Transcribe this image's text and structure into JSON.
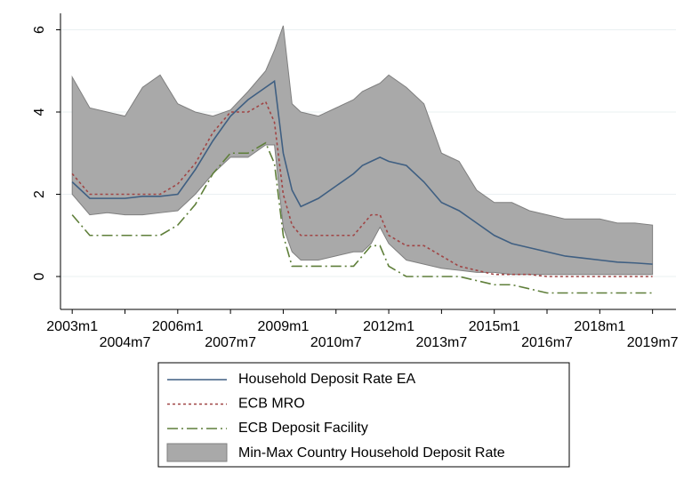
{
  "chart_data": {
    "type": "line",
    "x": [
      "2003m1",
      "2003m7",
      "2004m1",
      "2004m7",
      "2005m1",
      "2005m7",
      "2006m1",
      "2006m7",
      "2007m1",
      "2007m7",
      "2008m1",
      "2008m7",
      "2008m10",
      "2009m1",
      "2009m4",
      "2009m7",
      "2010m1",
      "2010m7",
      "2011m1",
      "2011m4",
      "2011m7",
      "2011m10",
      "2012m1",
      "2012m7",
      "2013m1",
      "2013m7",
      "2014m1",
      "2014m7",
      "2015m1",
      "2015m7",
      "2016m1",
      "2016m7",
      "2017m1",
      "2017m7",
      "2018m1",
      "2018m7",
      "2019m1",
      "2019m7"
    ],
    "band": {
      "name": "Min-Max Country Household Deposit Rate",
      "color": "#a9a9a9",
      "low": [
        2.0,
        1.5,
        1.55,
        1.5,
        1.5,
        1.55,
        1.6,
        2.0,
        2.5,
        2.9,
        2.9,
        3.2,
        3.2,
        1.2,
        0.6,
        0.4,
        0.4,
        0.5,
        0.6,
        0.6,
        0.8,
        1.2,
        0.8,
        0.4,
        0.3,
        0.2,
        0.15,
        0.1,
        0.1,
        0.05,
        0.05,
        0.05,
        0.05,
        0.05,
        0.05,
        0.05,
        0.05,
        0.05
      ],
      "high": [
        4.85,
        4.1,
        4.0,
        3.9,
        4.6,
        4.9,
        4.2,
        4.0,
        3.9,
        4.05,
        4.5,
        5.0,
        5.5,
        6.1,
        4.2,
        4.0,
        3.9,
        4.1,
        4.3,
        4.5,
        4.6,
        4.7,
        4.9,
        4.6,
        4.2,
        3.0,
        2.8,
        2.1,
        1.8,
        1.8,
        1.6,
        1.5,
        1.4,
        1.4,
        1.4,
        1.3,
        1.3,
        1.25
      ]
    },
    "series": [
      {
        "name": "Household Deposit Rate EA",
        "color": "#3f5f82",
        "dash": "none",
        "values": [
          2.3,
          1.9,
          1.9,
          1.9,
          1.95,
          1.95,
          2.0,
          2.6,
          3.3,
          3.9,
          4.3,
          4.6,
          4.75,
          3.0,
          2.1,
          1.7,
          1.9,
          2.2,
          2.5,
          2.7,
          2.8,
          2.9,
          2.8,
          2.7,
          2.3,
          1.8,
          1.6,
          1.3,
          1.0,
          0.8,
          0.7,
          0.6,
          0.5,
          0.45,
          0.4,
          0.35,
          0.33,
          0.3
        ]
      },
      {
        "name": "ECB MRO",
        "color": "#a04545",
        "dash": "3 3",
        "values": [
          2.5,
          2.0,
          2.0,
          2.0,
          2.0,
          2.0,
          2.25,
          2.75,
          3.5,
          4.0,
          4.0,
          4.25,
          3.75,
          2.0,
          1.25,
          1.0,
          1.0,
          1.0,
          1.0,
          1.25,
          1.5,
          1.5,
          1.0,
          0.75,
          0.75,
          0.5,
          0.25,
          0.15,
          0.05,
          0.05,
          0.05,
          0,
          0,
          0,
          0,
          0,
          0,
          0
        ]
      },
      {
        "name": "ECB Deposit Facility",
        "color": "#5f7f3a",
        "dash": "12 4 2 4",
        "values": [
          1.5,
          1.0,
          1.0,
          1.0,
          1.0,
          1.0,
          1.25,
          1.75,
          2.5,
          3.0,
          3.0,
          3.25,
          2.75,
          1.0,
          0.25,
          0.25,
          0.25,
          0.25,
          0.25,
          0.5,
          0.75,
          0.75,
          0.25,
          0,
          0,
          0,
          0,
          -0.1,
          -0.2,
          -0.2,
          -0.3,
          -0.4,
          -0.4,
          -0.4,
          -0.4,
          -0.4,
          -0.4,
          -0.4
        ]
      }
    ],
    "xlim": [
      "2002m9",
      "2020m3"
    ],
    "xticks": [
      "2003m1",
      "2004m7",
      "2006m1",
      "2007m7",
      "2009m1",
      "2010m7",
      "2012m1",
      "2013m7",
      "2015m1",
      "2016m7",
      "2018m1",
      "2019m7"
    ],
    "ylim": [
      -0.8,
      6.4
    ],
    "yticks": [
      0,
      2,
      4,
      6
    ],
    "grid": true
  }
}
